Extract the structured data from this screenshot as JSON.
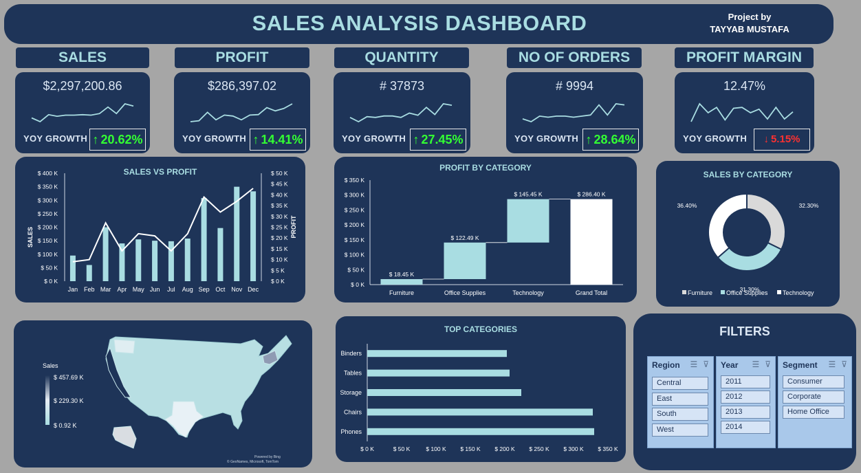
{
  "header": {
    "title": "SALES ANALYSIS DASHBOARD",
    "credit_line1": "Project by",
    "credit_line2": "TAYYAB MUSTAFA"
  },
  "kpis": [
    {
      "label": "SALES",
      "value": "$2,297,200.86",
      "yoy_label": "YOY GROWTH",
      "yoy_value": "20.62%",
      "direction": "up",
      "trend": [
        2,
        1.3,
        2.6,
        2.3,
        2.5,
        2.5,
        2.6,
        2.5,
        2.8,
        4,
        2.8,
        4.6,
        4.2
      ]
    },
    {
      "label": "PROFIT",
      "value": "$286,397.02",
      "yoy_label": "YOY GROWTH",
      "yoy_value": "14.41%",
      "direction": "up",
      "trend": [
        1,
        1.2,
        3,
        1.4,
        2.4,
        2.2,
        1.4,
        2.4,
        2.5,
        4,
        3.3,
        3.8,
        4.8
      ]
    },
    {
      "label": "QUANTITY",
      "value": "# 37873",
      "yoy_label": "YOY GROWTH",
      "yoy_value": "27.45%",
      "direction": "up",
      "trend": [
        1.6,
        1,
        1.7,
        1.6,
        1.8,
        1.8,
        1.6,
        2.2,
        1.9,
        3,
        2,
        3.5,
        3.3
      ]
    },
    {
      "label": "NO OF ORDERS",
      "value": "# 9994",
      "yoy_label": "YOY GROWTH",
      "yoy_value": "28.64%",
      "direction": "up",
      "trend": [
        1.5,
        1,
        2,
        1.8,
        2,
        2,
        1.8,
        2,
        2.2,
        4,
        2.2,
        4.2,
        4
      ]
    },
    {
      "label": "PROFIT MARGIN",
      "value": "12.47%",
      "yoy_label": "YOY GROWTH",
      "yoy_value": "5.15%",
      "direction": "down",
      "trend": [
        2,
        4,
        3,
        3.6,
        2.2,
        3.5,
        3.6,
        3,
        3.4,
        2.3,
        3.6,
        2.3,
        3.1
      ]
    }
  ],
  "arrows": {
    "up": "↑",
    "down": "↓"
  },
  "sales_vs_profit": {
    "type": "bar",
    "title": "SALES VS PROFIT",
    "ylabel": "SALES",
    "y2label": "PROFIT",
    "categories": [
      "Jan",
      "Feb",
      "Mar",
      "Apr",
      "May",
      "Jun",
      "Jul",
      "Aug",
      "Sep",
      "Oct",
      "Nov",
      "Dec"
    ],
    "series": [
      {
        "name": "Sales",
        "values": [
          95,
          60,
          200,
          140,
          155,
          150,
          148,
          158,
          308,
          197,
          350,
          333
        ]
      },
      {
        "name": "Profit",
        "values": [
          9,
          10,
          27,
          14,
          22,
          21,
          14,
          22,
          39,
          32,
          37,
          43
        ]
      }
    ],
    "ylim": [
      0,
      400
    ],
    "y2lim": [
      0,
      50
    ],
    "yticks": [
      "$ 0 K",
      "$ 50 K",
      "$ 100 K",
      "$ 150 K",
      "$ 200 K",
      "$ 250 K",
      "$ 300 K",
      "$ 350 K",
      "$ 400 K"
    ],
    "y2ticks": [
      "$ 0 K",
      "$ 5 K",
      "$ 10 K",
      "$ 15 K",
      "$ 20 K",
      "$ 25 K",
      "$ 30 K",
      "$ 35 K",
      "$ 40 K",
      "$ 45 K",
      "$ 50 K"
    ]
  },
  "profit_by_category": {
    "type": "bar",
    "title": "PROFIT BY CATEGORY",
    "categories": [
      "Furniture",
      "Office Supplies",
      "Technology",
      "Grand Total"
    ],
    "values": [
      18.45,
      122.49,
      145.45,
      286.4
    ],
    "data_labels": [
      "$ 18.45 K",
      "$ 122.49 K",
      "$ 145.45 K",
      "$ 286.40 K"
    ],
    "ylim": [
      0,
      350
    ],
    "yticks": [
      "$ 0 K",
      "$ 50 K",
      "$ 100 K",
      "$ 150 K",
      "$ 200 K",
      "$ 250 K",
      "$ 300 K",
      "$ 350 K"
    ]
  },
  "sales_by_category": {
    "type": "pie",
    "title": "SALES BY CATEGORY",
    "categories": [
      "Furniture",
      "Office Supplies",
      "Technology"
    ],
    "values": [
      32.3,
      31.3,
      36.4
    ],
    "data_labels": [
      "32.30%",
      "31.30%",
      "36.40%"
    ],
    "colors": [
      "#d9d9d9",
      "#a9dde2",
      "#ffffff"
    ]
  },
  "map": {
    "legend_title": "Sales",
    "legend_max": "$ 457.69 K",
    "legend_mid": "$ 229.30 K",
    "legend_min": "$ 0.92 K",
    "credit_line1": "Powered by Bing",
    "credit_line2": "© GeoNames, Microsoft, TomTom"
  },
  "top_categories": {
    "type": "bar",
    "title": "TOP CATEGORIES",
    "categories": [
      "Binders",
      "Tables",
      "Storage",
      "Chairs",
      "Phones"
    ],
    "values": [
      203,
      207,
      224,
      328,
      330
    ],
    "xlim": [
      0,
      350
    ],
    "xticks": [
      "$ 0 K",
      "$ 50 K",
      "$ 100 K",
      "$ 150 K",
      "$ 200 K",
      "$ 250 K",
      "$ 300 K",
      "$ 350 K"
    ]
  },
  "filters": {
    "title": "FILTERS",
    "region": {
      "label": "Region",
      "items": [
        "Central",
        "East",
        "South",
        "West"
      ]
    },
    "year": {
      "label": "Year",
      "items": [
        "2011",
        "2012",
        "2013",
        "2014"
      ]
    },
    "segment": {
      "label": "Segment",
      "items": [
        "Consumer",
        "Corporate",
        "Home Office"
      ]
    }
  }
}
